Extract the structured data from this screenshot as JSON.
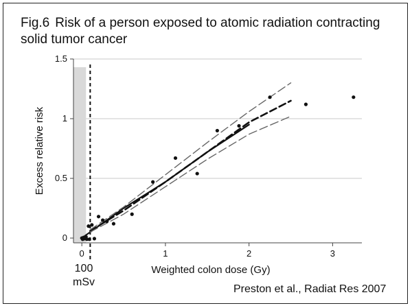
{
  "figure": {
    "fig_label": "Fig.6",
    "title": "Risk of a person exposed to atomic radiation contracting solid tumor cancer",
    "source": "Preston et al., Radiat Res 2007",
    "marker_label_value": "100",
    "marker_label_unit": "mSv"
  },
  "chart_data": {
    "type": "line",
    "xlabel": "Weighted colon dose (Gy)",
    "ylabel": "Excess relative risk",
    "xlim": [
      -0.1,
      3.35
    ],
    "ylim": [
      -0.04,
      1.5
    ],
    "x_ticks": [
      0,
      1,
      2,
      3
    ],
    "x_tick_labels": [
      "0",
      "1",
      "2",
      "3"
    ],
    "y_ticks": [
      0,
      0.5,
      1,
      1.5
    ],
    "y_tick_labels": [
      "0",
      "0.5",
      "1",
      "1.5"
    ],
    "grid": "horizontal",
    "shaded_region": {
      "x": [
        -0.1,
        0.05
      ],
      "color": "#d9d9d9"
    },
    "vertical_marker": {
      "x": 0.1,
      "style": "dashed"
    },
    "points": [
      {
        "x": 0.0,
        "y": 0.0
      },
      {
        "x": 0.01,
        "y": -0.01
      },
      {
        "x": 0.02,
        "y": 0.005
      },
      {
        "x": 0.03,
        "y": -0.005
      },
      {
        "x": 0.04,
        "y": 0.0
      },
      {
        "x": 0.05,
        "y": 0.01
      },
      {
        "x": 0.06,
        "y": -0.01
      },
      {
        "x": 0.08,
        "y": 0.1
      },
      {
        "x": 0.09,
        "y": -0.01
      },
      {
        "x": 0.12,
        "y": 0.11
      },
      {
        "x": 0.15,
        "y": -0.005
      },
      {
        "x": 0.2,
        "y": 0.18
      },
      {
        "x": 0.25,
        "y": 0.15
      },
      {
        "x": 0.3,
        "y": 0.14
      },
      {
        "x": 0.38,
        "y": 0.12
      },
      {
        "x": 0.6,
        "y": 0.2
      },
      {
        "x": 0.85,
        "y": 0.47
      },
      {
        "x": 1.12,
        "y": 0.67
      },
      {
        "x": 1.38,
        "y": 0.54
      },
      {
        "x": 1.62,
        "y": 0.9
      },
      {
        "x": 1.88,
        "y": 0.94
      },
      {
        "x": 2.25,
        "y": 1.18
      },
      {
        "x": 2.68,
        "y": 1.12
      },
      {
        "x": 3.25,
        "y": 1.18
      }
    ],
    "series": [
      {
        "style": "solid",
        "points": [
          [
            0,
            0
          ],
          [
            0.5,
            0.25
          ],
          [
            1,
            0.47
          ],
          [
            1.5,
            0.72
          ],
          [
            2,
            0.95
          ]
        ]
      },
      {
        "style": "dashed-thick",
        "points": [
          [
            0.1,
            0.06
          ],
          [
            0.5,
            0.23
          ],
          [
            1,
            0.47
          ],
          [
            1.5,
            0.72
          ],
          [
            2,
            0.97
          ],
          [
            2.5,
            1.15
          ]
        ]
      },
      {
        "style": "dashed-thin",
        "points": [
          [
            0.1,
            0.07
          ],
          [
            0.5,
            0.26
          ],
          [
            1,
            0.53
          ],
          [
            1.5,
            0.8
          ],
          [
            2,
            1.06
          ],
          [
            2.5,
            1.3
          ]
        ]
      },
      {
        "style": "dashed-thin",
        "points": [
          [
            0.1,
            0.05
          ],
          [
            0.5,
            0.2
          ],
          [
            1,
            0.43
          ],
          [
            1.5,
            0.66
          ],
          [
            2,
            0.87
          ],
          [
            2.5,
            1.02
          ]
        ]
      }
    ]
  }
}
